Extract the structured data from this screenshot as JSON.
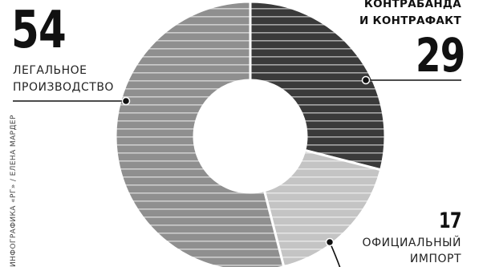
{
  "chart_data": {
    "type": "pie",
    "style": "donut",
    "categories": [
      "ЛЕГАЛЬНОЕ ПРОИЗВОДСТВО",
      "КОНТРАБАНДА И КОНТРАФАКТ",
      "ОФИЦИАЛЬНЫЙ ИМПОРТ"
    ],
    "values": [
      54,
      29,
      17
    ],
    "colors": [
      "#8f8f8f",
      "#3a3a3a",
      "#c4c4c4"
    ],
    "legend": "none"
  },
  "labels": {
    "legal": {
      "value": "54",
      "line1": "ЛЕГАЛЬНОЕ",
      "line2": "ПРОИЗВОДСТВО"
    },
    "contraband": {
      "value": "29",
      "line1": "КОНТРАБАНДА",
      "line2": "И КОНТРАФАКТ"
    },
    "import": {
      "value": "17",
      "line1": "ОФИЦИАЛЬНЫЙ",
      "line2": "ИМПОРТ"
    }
  },
  "credit": "ИНФОГРАФИКА «РГ» / ЕЛЕНА МАРДЕР"
}
